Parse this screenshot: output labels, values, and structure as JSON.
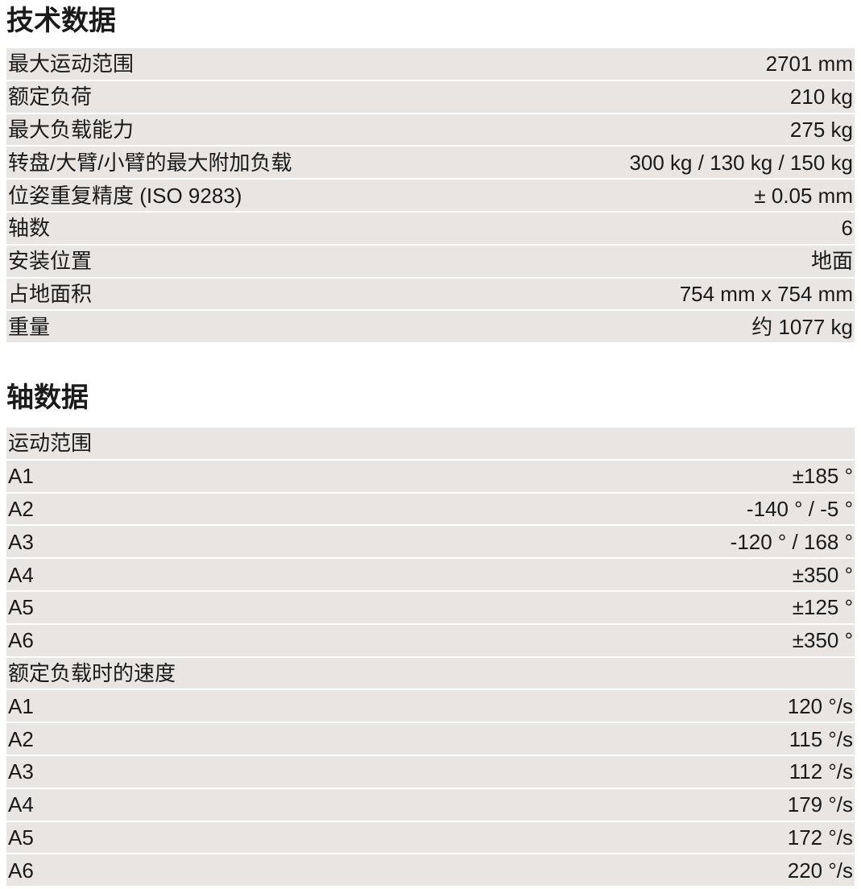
{
  "tech": {
    "title": "技术数据",
    "rows": [
      {
        "label": "最大运动范围",
        "value": "2701 mm"
      },
      {
        "label": "额定负荷",
        "value": "210 kg"
      },
      {
        "label": "最大负载能力",
        "value": "275 kg"
      },
      {
        "label": "转盘/大臂/小臂的最大附加负载",
        "value": "300 kg / 130 kg / 150 kg"
      },
      {
        "label": "位姿重复精度 (ISO 9283)",
        "value": "± 0.05 mm"
      },
      {
        "label": "轴数",
        "value": "6"
      },
      {
        "label": "安装位置",
        "value": "地面"
      },
      {
        "label": "占地面积",
        "value": "754 mm x 754 mm"
      },
      {
        "label": "重量",
        "value": "约 1077 kg"
      }
    ]
  },
  "axis": {
    "title": "轴数据",
    "rows": [
      {
        "label": "运动范围",
        "value": ""
      },
      {
        "label": "A1",
        "value": "±185 °"
      },
      {
        "label": "A2",
        "value": "-140 ° / -5 °"
      },
      {
        "label": "A3",
        "value": "-120 ° / 168 °"
      },
      {
        "label": "A4",
        "value": "±350 °"
      },
      {
        "label": "A5",
        "value": "±125 °"
      },
      {
        "label": "A6",
        "value": "±350 °"
      },
      {
        "label": "额定负载时的速度",
        "value": ""
      },
      {
        "label": "A1",
        "value": "120 °/s"
      },
      {
        "label": "A2",
        "value": "115 °/s"
      },
      {
        "label": "A3",
        "value": "112 °/s"
      },
      {
        "label": "A4",
        "value": "179 °/s"
      },
      {
        "label": "A5",
        "value": "172 °/s"
      },
      {
        "label": "A6",
        "value": "220 °/s"
      }
    ]
  }
}
